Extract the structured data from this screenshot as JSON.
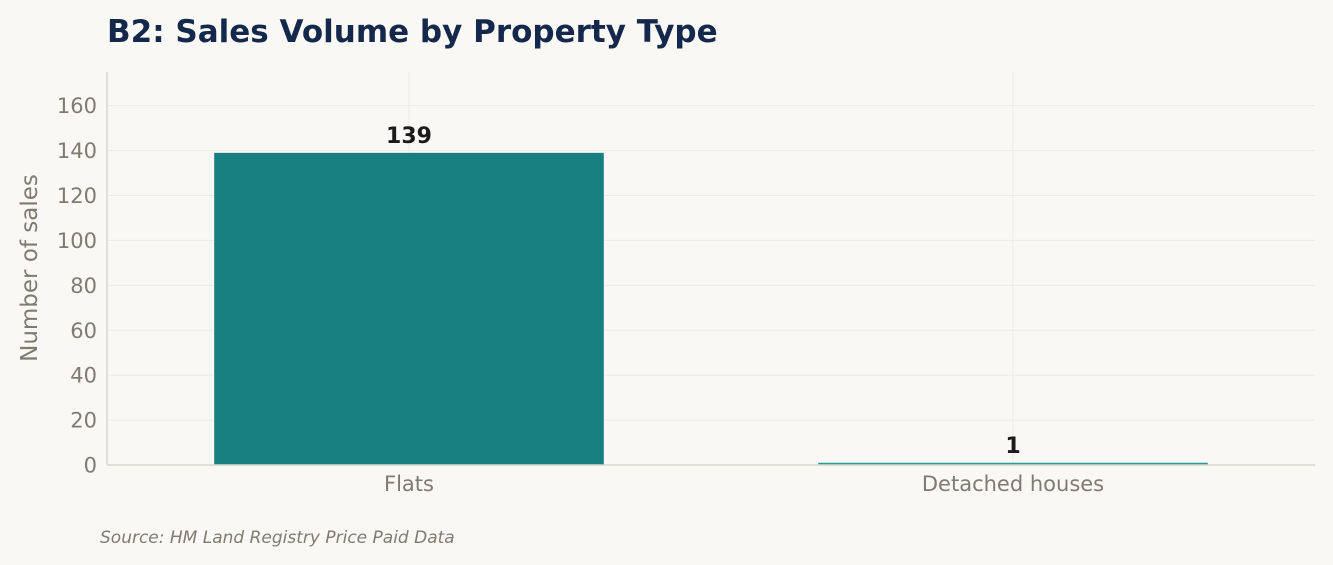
{
  "chart_data": {
    "type": "bar",
    "title": "B2: Sales Volume by Property Type",
    "ylabel": "Number of sales",
    "xlabel": "",
    "categories": [
      "Flats",
      "Detached houses"
    ],
    "values": [
      139,
      1
    ],
    "data_labels": [
      "139",
      "1"
    ],
    "bar_colors": [
      "#177f7f",
      "#2a9d92"
    ],
    "ylim": [
      0,
      175
    ],
    "yticks": [
      0,
      20,
      40,
      60,
      80,
      100,
      120,
      140,
      160
    ],
    "grid": true,
    "legend": "none"
  },
  "source_note": "Source: HM Land Registry Price Paid Data"
}
